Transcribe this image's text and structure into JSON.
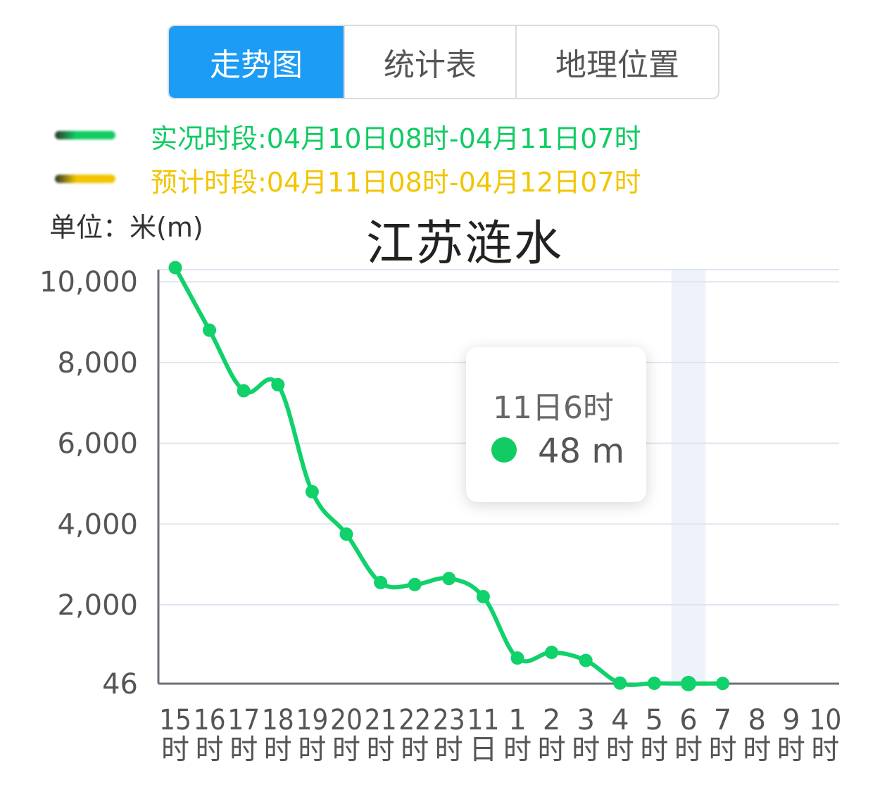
{
  "tabs": [
    {
      "label": "走势图",
      "active": true
    },
    {
      "label": "统计表",
      "active": false
    },
    {
      "label": "地理位置",
      "active": false
    }
  ],
  "legend": [
    {
      "text": "实况时段:04月10日08时-04月11日07时",
      "color": "#10cc63"
    },
    {
      "text": "预计时段:04月11日08时-04月12日07时",
      "color": "#f2c500"
    }
  ],
  "unit_label": "单位：米(m)",
  "tooltip": {
    "time": "11日6时",
    "value": "48 m",
    "color": "#10cc63"
  },
  "colors": {
    "line": "#10d16a",
    "axis": "#6b6f78",
    "grid": "#dfe5f0",
    "tick_text": "#555555",
    "highlight_band": "#eef2fa"
  },
  "chart_data": {
    "type": "line",
    "title": "江苏涟水",
    "ylabel": "单位：米(m)",
    "ylim": [
      46,
      10300
    ],
    "y_ticks": [
      {
        "value": 46,
        "label": "46"
      },
      {
        "value": 2000,
        "label": "2,000"
      },
      {
        "value": 4000,
        "label": "4,000"
      },
      {
        "value": 6000,
        "label": "6,000"
      },
      {
        "value": 8000,
        "label": "8,000"
      },
      {
        "value": 10000,
        "label": "10,000"
      }
    ],
    "categories": [
      {
        "top": "15",
        "bottom": "时"
      },
      {
        "top": "16",
        "bottom": "时"
      },
      {
        "top": "17",
        "bottom": "时"
      },
      {
        "top": "18",
        "bottom": "时"
      },
      {
        "top": "19",
        "bottom": "时"
      },
      {
        "top": "20",
        "bottom": "时"
      },
      {
        "top": "21",
        "bottom": "时"
      },
      {
        "top": "22",
        "bottom": "时"
      },
      {
        "top": "23",
        "bottom": "时"
      },
      {
        "top": "11",
        "bottom": "日"
      },
      {
        "top": "1",
        "bottom": "时"
      },
      {
        "top": "2",
        "bottom": "时"
      },
      {
        "top": "3",
        "bottom": "时"
      },
      {
        "top": "4",
        "bottom": "时"
      },
      {
        "top": "5",
        "bottom": "时"
      },
      {
        "top": "6",
        "bottom": "时"
      },
      {
        "top": "7",
        "bottom": "时"
      },
      {
        "top": "8",
        "bottom": "时"
      },
      {
        "top": "9",
        "bottom": "时"
      },
      {
        "top": "10",
        "bottom": "时"
      }
    ],
    "series": [
      {
        "values": [
          10350,
          8800,
          7300,
          7450,
          4800,
          3750,
          2550,
          2500,
          2650,
          2200,
          680,
          820,
          620,
          60,
          55,
          48,
          50,
          null,
          null,
          null
        ]
      }
    ],
    "highlight_category_index": 15,
    "grid": true
  }
}
